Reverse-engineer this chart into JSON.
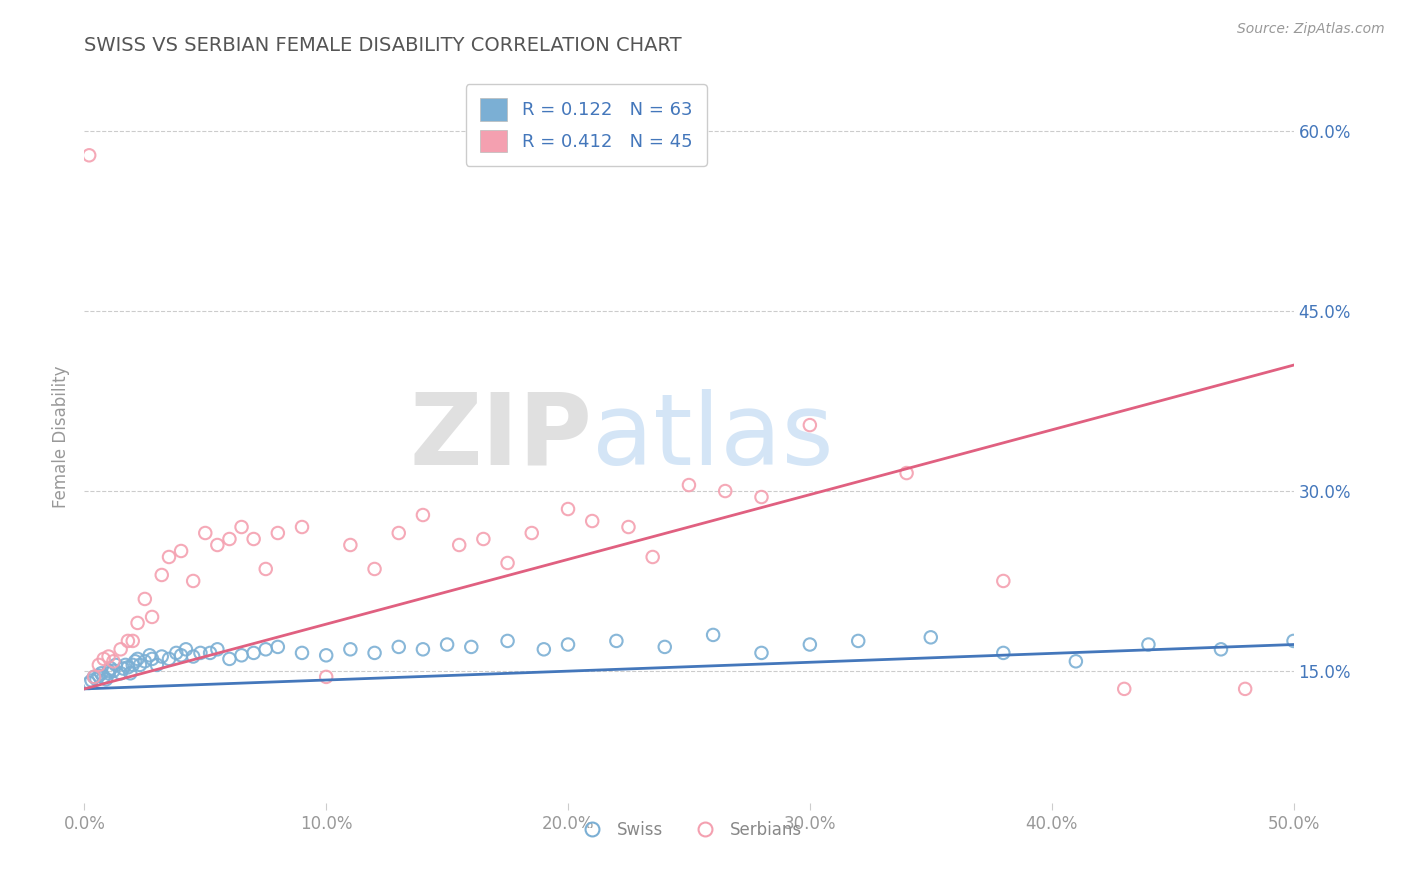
{
  "title": "SWISS VS SERBIAN FEMALE DISABILITY CORRELATION CHART",
  "source_text": "Source: ZipAtlas.com",
  "xlabel": "",
  "ylabel": "Female Disability",
  "xlim": [
    0.0,
    0.5
  ],
  "ylim": [
    0.04,
    0.65
  ],
  "xtick_labels": [
    "0.0%",
    "10.0%",
    "20.0%",
    "30.0%",
    "40.0%",
    "50.0%"
  ],
  "xtick_values": [
    0.0,
    0.1,
    0.2,
    0.3,
    0.4,
    0.5
  ],
  "ytick_right_labels": [
    "15.0%",
    "30.0%",
    "45.0%",
    "60.0%"
  ],
  "ytick_right_values": [
    0.15,
    0.3,
    0.45,
    0.6
  ],
  "swiss_color": "#7BAFD4",
  "serbian_color": "#F4A0B0",
  "swiss_line_color": "#4477BB",
  "serbian_line_color": "#E06080",
  "swiss_R": 0.122,
  "swiss_N": 63,
  "serbian_R": 0.412,
  "serbian_N": 45,
  "title_color": "#555555",
  "label_color": "#4477BB",
  "watermark_text": "ZIPatlas",
  "background_color": "#FFFFFF",
  "swiss_scatter_x": [
    0.002,
    0.003,
    0.004,
    0.005,
    0.006,
    0.007,
    0.008,
    0.009,
    0.01,
    0.01,
    0.011,
    0.012,
    0.013,
    0.015,
    0.016,
    0.017,
    0.018,
    0.019,
    0.02,
    0.021,
    0.022,
    0.023,
    0.025,
    0.027,
    0.028,
    0.03,
    0.032,
    0.035,
    0.038,
    0.04,
    0.042,
    0.045,
    0.048,
    0.052,
    0.055,
    0.06,
    0.065,
    0.07,
    0.075,
    0.08,
    0.09,
    0.1,
    0.11,
    0.12,
    0.13,
    0.14,
    0.15,
    0.16,
    0.175,
    0.19,
    0.2,
    0.22,
    0.24,
    0.26,
    0.28,
    0.3,
    0.32,
    0.35,
    0.38,
    0.41,
    0.44,
    0.47,
    0.5
  ],
  "swiss_scatter_y": [
    0.14,
    0.142,
    0.145,
    0.143,
    0.146,
    0.148,
    0.145,
    0.143,
    0.15,
    0.148,
    0.152,
    0.15,
    0.155,
    0.148,
    0.152,
    0.155,
    0.153,
    0.148,
    0.155,
    0.158,
    0.16,
    0.155,
    0.158,
    0.163,
    0.16,
    0.155,
    0.162,
    0.16,
    0.165,
    0.163,
    0.168,
    0.162,
    0.165,
    0.165,
    0.168,
    0.16,
    0.163,
    0.165,
    0.168,
    0.17,
    0.165,
    0.163,
    0.168,
    0.165,
    0.17,
    0.168,
    0.172,
    0.17,
    0.175,
    0.168,
    0.172,
    0.175,
    0.17,
    0.18,
    0.165,
    0.172,
    0.175,
    0.178,
    0.165,
    0.158,
    0.172,
    0.168,
    0.175
  ],
  "serbian_scatter_x": [
    0.002,
    0.004,
    0.006,
    0.008,
    0.01,
    0.012,
    0.015,
    0.018,
    0.02,
    0.022,
    0.025,
    0.028,
    0.032,
    0.035,
    0.04,
    0.045,
    0.05,
    0.055,
    0.06,
    0.065,
    0.07,
    0.075,
    0.08,
    0.09,
    0.1,
    0.11,
    0.12,
    0.13,
    0.14,
    0.155,
    0.165,
    0.175,
    0.185,
    0.2,
    0.21,
    0.225,
    0.235,
    0.25,
    0.265,
    0.28,
    0.3,
    0.34,
    0.38,
    0.43,
    0.48
  ],
  "serbian_scatter_y": [
    0.58,
    0.145,
    0.155,
    0.16,
    0.162,
    0.158,
    0.168,
    0.175,
    0.175,
    0.19,
    0.21,
    0.195,
    0.23,
    0.245,
    0.25,
    0.225,
    0.265,
    0.255,
    0.26,
    0.27,
    0.26,
    0.235,
    0.265,
    0.27,
    0.145,
    0.255,
    0.235,
    0.265,
    0.28,
    0.255,
    0.26,
    0.24,
    0.265,
    0.285,
    0.275,
    0.27,
    0.245,
    0.305,
    0.3,
    0.295,
    0.355,
    0.315,
    0.225,
    0.135,
    0.135
  ]
}
